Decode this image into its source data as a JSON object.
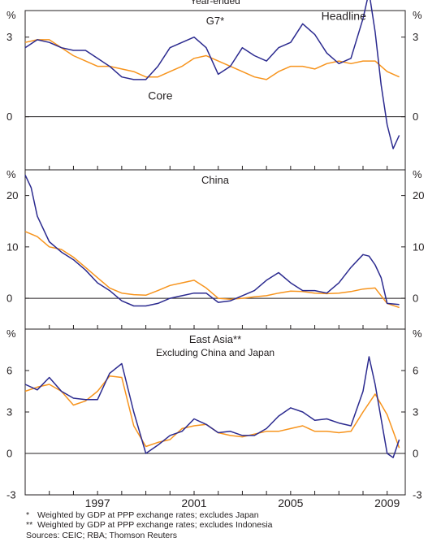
{
  "chart_data": {
    "type": "line",
    "title": "Year-ended",
    "x_ticks": [
      "1997",
      "2001",
      "2005",
      "2009"
    ],
    "xlim": [
      1994.0,
      2009.75
    ],
    "colors": {
      "Headline": "#2b2a8f",
      "Core": "#f7941d",
      "frame": "#231f20"
    },
    "panels": [
      {
        "title": "G7*",
        "subtitle": "",
        "unit_left": "%",
        "unit_right": "%",
        "ylim": [
          -2.0,
          4.0
        ],
        "yticks": [
          "0",
          "3"
        ],
        "ytick_values": [
          0,
          3
        ],
        "series_labels": [
          {
            "name": "Headline",
            "text": "Headline"
          },
          {
            "name": "Core",
            "text": "Core"
          }
        ],
        "series": [
          {
            "name": "Headline",
            "x": [
              1994.0,
              1994.5,
              1995.0,
              1995.5,
              1996.0,
              1996.5,
              1997.0,
              1997.5,
              1998.0,
              1998.5,
              1999.0,
              1999.5,
              2000.0,
              2000.5,
              2001.0,
              2001.5,
              2002.0,
              2002.5,
              2003.0,
              2003.5,
              2004.0,
              2004.5,
              2005.0,
              2005.5,
              2006.0,
              2006.5,
              2007.0,
              2007.5,
              2008.0,
              2008.25,
              2008.5,
              2008.75,
              2009.0,
              2009.25,
              2009.5
            ],
            "y": [
              2.6,
              2.9,
              2.8,
              2.6,
              2.5,
              2.5,
              2.2,
              1.9,
              1.5,
              1.4,
              1.4,
              1.9,
              2.6,
              2.8,
              3.0,
              2.6,
              1.6,
              1.9,
              2.6,
              2.3,
              2.1,
              2.6,
              2.8,
              3.5,
              3.1,
              2.4,
              2.0,
              2.2,
              3.7,
              4.7,
              3.2,
              1.2,
              -0.3,
              -1.2,
              -0.7
            ]
          },
          {
            "name": "Core",
            "x": [
              1994.0,
              1994.5,
              1995.0,
              1995.5,
              1996.0,
              1996.5,
              1997.0,
              1997.5,
              1998.0,
              1998.5,
              1999.0,
              1999.5,
              2000.0,
              2000.5,
              2001.0,
              2001.5,
              2002.0,
              2002.5,
              2003.0,
              2003.5,
              2004.0,
              2004.5,
              2005.0,
              2005.5,
              2006.0,
              2006.5,
              2007.0,
              2007.5,
              2008.0,
              2008.5,
              2009.0,
              2009.5
            ],
            "y": [
              2.8,
              2.9,
              2.9,
              2.6,
              2.3,
              2.1,
              1.9,
              1.9,
              1.8,
              1.7,
              1.5,
              1.5,
              1.7,
              1.9,
              2.2,
              2.3,
              2.1,
              1.9,
              1.7,
              1.5,
              1.4,
              1.7,
              1.9,
              1.9,
              1.8,
              2.0,
              2.1,
              2.0,
              2.1,
              2.1,
              1.7,
              1.5
            ]
          }
        ]
      },
      {
        "title": "China",
        "subtitle": "",
        "unit_left": "%",
        "unit_right": "%",
        "ylim": [
          -6.0,
          25.0
        ],
        "yticks": [
          "0",
          "10",
          "20"
        ],
        "ytick_values": [
          0,
          10,
          20
        ],
        "series_labels": [],
        "series": [
          {
            "name": "Headline",
            "x": [
              1994.0,
              1994.25,
              1994.5,
              1995.0,
              1995.5,
              1996.0,
              1996.5,
              1997.0,
              1997.5,
              1998.0,
              1998.5,
              1999.0,
              1999.5,
              2000.0,
              2000.5,
              2001.0,
              2001.5,
              2002.0,
              2002.5,
              2003.0,
              2003.5,
              2004.0,
              2004.5,
              2005.0,
              2005.5,
              2006.0,
              2006.5,
              2007.0,
              2007.5,
              2008.0,
              2008.25,
              2008.5,
              2008.75,
              2009.0,
              2009.5
            ],
            "y": [
              24.0,
              21.5,
              16.0,
              11.0,
              9.0,
              7.5,
              5.5,
              3.0,
              1.5,
              -0.5,
              -1.5,
              -1.5,
              -1.0,
              0.0,
              0.5,
              1.0,
              1.0,
              -0.8,
              -0.5,
              0.5,
              1.5,
              3.5,
              5.0,
              3.0,
              1.5,
              1.5,
              1.0,
              3.0,
              6.0,
              8.5,
              8.2,
              6.5,
              4.0,
              -1.0,
              -1.2
            ]
          },
          {
            "name": "Core",
            "x": [
              1994.0,
              1994.5,
              1995.0,
              1995.5,
              1996.0,
              1996.5,
              1997.0,
              1997.5,
              1998.0,
              1998.5,
              1999.0,
              1999.5,
              2000.0,
              2000.5,
              2001.0,
              2001.5,
              2002.0,
              2002.5,
              2003.0,
              2003.5,
              2004.0,
              2004.5,
              2005.0,
              2005.5,
              2006.0,
              2006.5,
              2007.0,
              2007.5,
              2008.0,
              2008.5,
              2009.0,
              2009.5
            ],
            "y": [
              13.0,
              12.0,
              10.0,
              9.5,
              8.0,
              6.0,
              4.0,
              2.0,
              1.0,
              0.7,
              0.6,
              1.5,
              2.5,
              3.0,
              3.5,
              2.0,
              0.0,
              -0.2,
              0.0,
              0.3,
              0.5,
              1.0,
              1.4,
              1.3,
              1.0,
              0.9,
              1.0,
              1.3,
              1.8,
              2.0,
              -1.0,
              -1.8
            ]
          }
        ]
      },
      {
        "title": "East Asia**",
        "subtitle": "Excluding China and Japan",
        "unit_left": "%",
        "unit_right": "%",
        "ylim": [
          -3.0,
          9.0
        ],
        "yticks": [
          "-3",
          "0",
          "3",
          "6"
        ],
        "ytick_values": [
          -3,
          0,
          3,
          6
        ],
        "series_labels": [],
        "series": [
          {
            "name": "Headline",
            "x": [
              1994.0,
              1994.5,
              1995.0,
              1995.5,
              1996.0,
              1996.5,
              1997.0,
              1997.5,
              1998.0,
              1998.5,
              1999.0,
              1999.5,
              2000.0,
              2000.5,
              2001.0,
              2001.5,
              2002.0,
              2002.5,
              2003.0,
              2003.5,
              2004.0,
              2004.5,
              2005.0,
              2005.5,
              2006.0,
              2006.5,
              2007.0,
              2007.5,
              2008.0,
              2008.25,
              2008.5,
              2008.75,
              2009.0,
              2009.25,
              2009.5
            ],
            "y": [
              5.0,
              4.6,
              5.5,
              4.5,
              4.0,
              3.9,
              3.9,
              5.8,
              6.5,
              3.0,
              0.0,
              0.6,
              1.3,
              1.6,
              2.5,
              2.1,
              1.5,
              1.6,
              1.3,
              1.3,
              1.8,
              2.7,
              3.3,
              3.0,
              2.4,
              2.5,
              2.2,
              2.0,
              4.5,
              7.0,
              5.0,
              2.5,
              0.0,
              -0.3,
              1.0
            ]
          },
          {
            "name": "Core",
            "x": [
              1994.0,
              1994.5,
              1995.0,
              1995.5,
              1996.0,
              1996.5,
              1997.0,
              1997.5,
              1998.0,
              1998.5,
              1999.0,
              1999.5,
              2000.0,
              2000.5,
              2001.0,
              2001.5,
              2002.0,
              2002.5,
              2003.0,
              2003.5,
              2004.0,
              2004.5,
              2005.0,
              2005.5,
              2006.0,
              2006.5,
              2007.0,
              2007.5,
              2008.0,
              2008.5,
              2009.0,
              2009.5
            ],
            "y": [
              4.5,
              4.8,
              5.0,
              4.5,
              3.5,
              3.8,
              4.5,
              5.6,
              5.5,
              2.0,
              0.5,
              0.8,
              1.0,
              1.8,
              2.0,
              2.1,
              1.5,
              1.3,
              1.2,
              1.4,
              1.6,
              1.6,
              1.8,
              2.0,
              1.6,
              1.6,
              1.5,
              1.6,
              3.0,
              4.3,
              2.8,
              0.4
            ]
          }
        ]
      }
    ]
  },
  "footnotes": [
    {
      "mark": "*",
      "text": "Weighted by GDP at PPP exchange rates; excludes Japan"
    },
    {
      "mark": "**",
      "text": "Weighted by GDP at PPP exchange rates; excludes Indonesia"
    }
  ],
  "sources": "Sources: CEIC; RBA; Thomson Reuters"
}
